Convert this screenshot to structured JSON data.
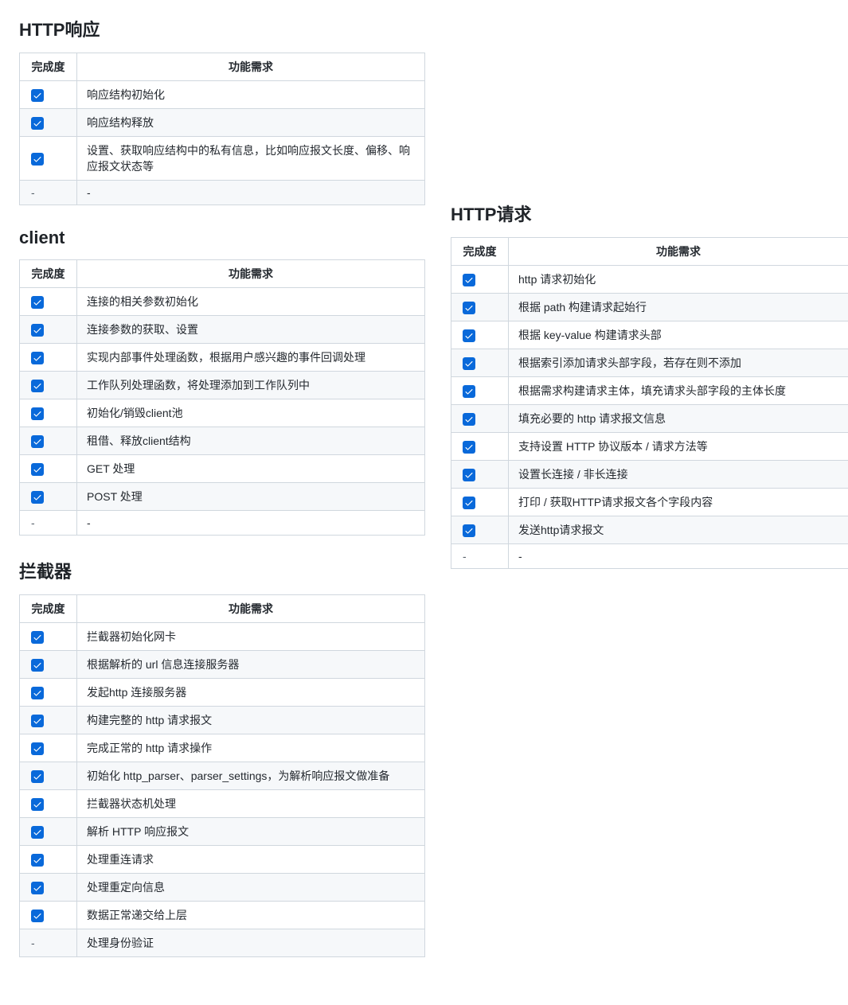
{
  "columns": {
    "completion": "完成度",
    "requirement": "功能需求"
  },
  "sections": {
    "http_response": {
      "title": "HTTP响应",
      "rows": [
        {
          "done": true,
          "text": "响应结构初始化"
        },
        {
          "done": true,
          "text": "响应结构释放"
        },
        {
          "done": true,
          "text": "设置、获取响应结构中的私有信息，比如响应报文长度、偏移、响应报文状态等"
        },
        {
          "done": null,
          "text": "-"
        }
      ]
    },
    "client": {
      "title": "client",
      "rows": [
        {
          "done": true,
          "text": "连接的相关参数初始化"
        },
        {
          "done": true,
          "text": "连接参数的获取、设置"
        },
        {
          "done": true,
          "text": "实现内部事件处理函数，根据用户感兴趣的事件回调处理"
        },
        {
          "done": true,
          "text": "工作队列处理函数，将处理添加到工作队列中"
        },
        {
          "done": true,
          "text": "初始化/销毁client池"
        },
        {
          "done": true,
          "text": "租借、释放client结构"
        },
        {
          "done": true,
          "text": "GET 处理"
        },
        {
          "done": true,
          "text": "POST 处理"
        },
        {
          "done": null,
          "text": "-"
        }
      ]
    },
    "interceptor": {
      "title": "拦截器",
      "rows": [
        {
          "done": true,
          "text": "拦截器初始化网卡"
        },
        {
          "done": true,
          "text": "根据解析的 url 信息连接服务器"
        },
        {
          "done": true,
          "text": "发起http 连接服务器"
        },
        {
          "done": true,
          "text": "构建完整的 http 请求报文"
        },
        {
          "done": true,
          "text": "完成正常的 http 请求操作"
        },
        {
          "done": true,
          "text": "初始化 http_parser、parser_settings，为解析响应报文做准备"
        },
        {
          "done": true,
          "text": "拦截器状态机处理"
        },
        {
          "done": true,
          "text": "解析 HTTP 响应报文"
        },
        {
          "done": true,
          "text": "处理重连请求"
        },
        {
          "done": true,
          "text": "处理重定向信息"
        },
        {
          "done": true,
          "text": "数据正常递交给上层"
        },
        {
          "done": null,
          "text": "处理身份验证"
        }
      ]
    },
    "http_request": {
      "title": "HTTP请求",
      "rows": [
        {
          "done": true,
          "text": "http 请求初始化"
        },
        {
          "done": true,
          "text": "根据 path 构建请求起始行"
        },
        {
          "done": true,
          "text": "根据 key-value 构建请求头部"
        },
        {
          "done": true,
          "text": "根据索引添加请求头部字段，若存在则不添加"
        },
        {
          "done": true,
          "text": "根据需求构建请求主体，填充请求头部字段的主体长度"
        },
        {
          "done": true,
          "text": "填充必要的 http 请求报文信息"
        },
        {
          "done": true,
          "text": "支持设置 HTTP 协议版本 / 请求方法等"
        },
        {
          "done": true,
          "text": "设置长连接 / 非长连接"
        },
        {
          "done": true,
          "text": "打印 / 获取HTTP请求报文各个字段内容"
        },
        {
          "done": true,
          "text": "发送http请求报文"
        },
        {
          "done": null,
          "text": "-"
        }
      ]
    }
  },
  "style": {
    "check_bg": "#0969da",
    "check_fg": "#ffffff",
    "border_color": "#d0d7de",
    "stripe_bg": "#f6f8fa",
    "text_color": "#24292f",
    "title_fontsize": 22,
    "cell_fontsize": 14
  }
}
